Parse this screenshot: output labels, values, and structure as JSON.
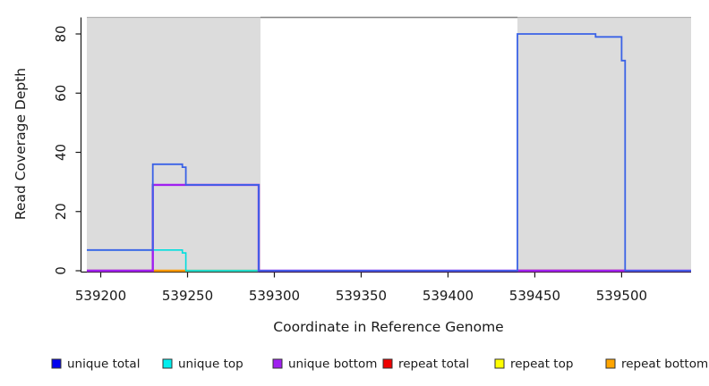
{
  "figure": {
    "background": "#ffffff"
  },
  "chart_data": {
    "type": "line",
    "title": "",
    "xlabel": "Coordinate in Reference Genome",
    "ylabel": "Read Coverage Depth",
    "x_range": [
      539192,
      539540
    ],
    "y_range": [
      0,
      85.5
    ],
    "x_ticks": [
      539200,
      539250,
      539300,
      539350,
      539400,
      539450,
      539500
    ],
    "y_ticks": [
      0,
      20,
      40,
      60,
      80
    ],
    "grid": "off",
    "repeat_regions": [
      {
        "x1": 539192,
        "x2": 539292
      },
      {
        "x1": 539440,
        "x2": 539540
      }
    ],
    "repeat_region_fill": "#dcdcdc",
    "boundary_lines": [
      {
        "name": "plot-top-edge",
        "x1": 539192,
        "x2": 539540,
        "value": 85.5,
        "color": "#b2b2b2",
        "width": 1.3
      },
      {
        "name": "unique-gap-top-line",
        "x1": 539292,
        "x2": 539440,
        "value": 85.5,
        "color": "#868686",
        "width": 1.6
      }
    ],
    "series": [
      {
        "name": "unique top",
        "color": "#00dede",
        "stroke_width": 1.6,
        "points": [
          [
            539192,
            7
          ],
          [
            539247,
            7
          ],
          [
            539247,
            6
          ],
          [
            539249,
            6
          ],
          [
            539249,
            0
          ],
          [
            539540,
            0
          ]
        ]
      },
      {
        "name": "unique bottom",
        "color": "#a020f0",
        "stroke_width": 2.4,
        "points": [
          [
            539192,
            0
          ],
          [
            539230,
            0
          ],
          [
            539230,
            29
          ],
          [
            539291,
            29
          ],
          [
            539291,
            0
          ],
          [
            539540,
            0
          ]
        ]
      },
      {
        "name": "unique total",
        "color": "#3a62e6",
        "stroke_width": 1.8,
        "points": [
          [
            539192,
            7
          ],
          [
            539230,
            7
          ],
          [
            539230,
            36
          ],
          [
            539247,
            36
          ],
          [
            539247,
            35
          ],
          [
            539249,
            35
          ],
          [
            539249,
            29
          ],
          [
            539291,
            29
          ],
          [
            539291,
            0
          ],
          [
            539440,
            0
          ],
          [
            539440,
            80
          ],
          [
            539485,
            80
          ],
          [
            539485,
            79
          ],
          [
            539500,
            79
          ],
          [
            539500,
            71
          ],
          [
            539502,
            71
          ],
          [
            539502,
            0
          ],
          [
            539540,
            0
          ]
        ]
      }
    ],
    "zero_line_overlays": [
      {
        "name": "repeat total over unique bottom (left repeat)",
        "color": "#d65c7a",
        "x1": 539192,
        "x2": 539230
      },
      {
        "name": "repeat bottom",
        "color": "#ff9900",
        "x1": 539230,
        "x2": 539249
      },
      {
        "name": "repeat top over unique top",
        "color": "#8fce8f",
        "x1": 539249,
        "x2": 539291
      },
      {
        "name": "repeat total (right repeat)",
        "color": "#e63232",
        "x1": 539440,
        "x2": 539502
      }
    ],
    "legend": {
      "items": [
        {
          "label": "unique total",
          "color": "#0000ee"
        },
        {
          "label": "unique top",
          "color": "#00eeee"
        },
        {
          "label": "unique bottom",
          "color": "#a020f0"
        },
        {
          "label": "repeat total",
          "color": "#ee0000"
        },
        {
          "label": "repeat top",
          "color": "#ffff00"
        },
        {
          "label": "repeat bottom",
          "color": "#ffa500"
        }
      ]
    }
  }
}
